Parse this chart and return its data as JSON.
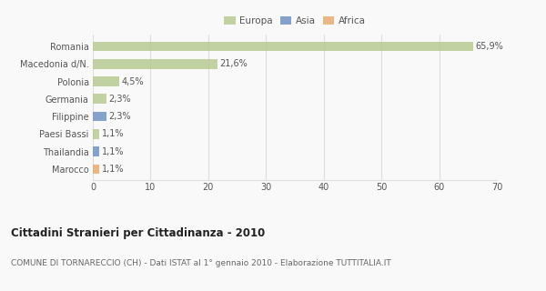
{
  "categories": [
    "Romania",
    "Macedonia d/N.",
    "Polonia",
    "Germania",
    "Filippine",
    "Paesi Bassi",
    "Thailandia",
    "Marocco"
  ],
  "values": [
    65.9,
    21.6,
    4.5,
    2.3,
    2.3,
    1.1,
    1.1,
    1.1
  ],
  "labels": [
    "65,9%",
    "21,6%",
    "4,5%",
    "2,3%",
    "2,3%",
    "1,1%",
    "1,1%",
    "1,1%"
  ],
  "colors": [
    "#b5c98e",
    "#b5c98e",
    "#b5c98e",
    "#b5c98e",
    "#6b8fc2",
    "#b5c98e",
    "#6b8fc2",
    "#e8a96b"
  ],
  "legend_labels": [
    "Europa",
    "Asia",
    "Africa"
  ],
  "legend_colors": [
    "#b5c98e",
    "#6b8fc2",
    "#e8a96b"
  ],
  "title": "Cittadini Stranieri per Cittadinanza - 2010",
  "subtitle": "COMUNE DI TORNARECCIO (CH) - Dati ISTAT al 1° gennaio 2010 - Elaborazione TUTTITALIA.IT",
  "xlim": [
    0,
    70
  ],
  "xticks": [
    0,
    10,
    20,
    30,
    40,
    50,
    60,
    70
  ],
  "background_color": "#f9f9f9",
  "grid_color": "#dddddd",
  "title_fontsize": 8.5,
  "subtitle_fontsize": 6.5,
  "label_fontsize": 7,
  "tick_fontsize": 7,
  "legend_fontsize": 7.5,
  "bar_height": 0.55,
  "bar_alpha": 0.82
}
